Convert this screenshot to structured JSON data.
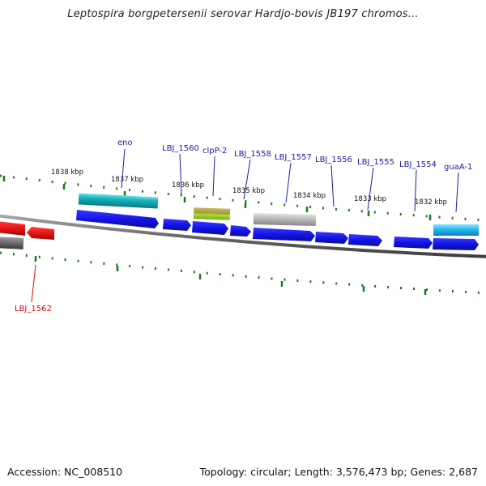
{
  "title": "Leptospira borgpetersenii serovar Hardjo-bovis JB197 chromos...",
  "footer": {
    "accession": "Accession: NC_008510",
    "summary": "Topology: circular; Length: 3,576,473 bp; Genes: 2,687"
  },
  "scale_labels": [
    "1838 kbp",
    "1837 kbp",
    "1836 kbp",
    "1835 kbp",
    "1834 kbp",
    "1833 kbp",
    "1832 kbp"
  ],
  "gene_labels": [
    {
      "text": "eno",
      "color": "#1a1aa8"
    },
    {
      "text": "LBJ_1560",
      "color": "#1a1aa8"
    },
    {
      "text": "clpP-2",
      "color": "#1a1aa8"
    },
    {
      "text": "LBJ_1558",
      "color": "#1a1aa8"
    },
    {
      "text": "LBJ_1557",
      "color": "#1a1aa8"
    },
    {
      "text": "LBJ_1556",
      "color": "#1a1aa8"
    },
    {
      "text": "LBJ_1555",
      "color": "#1a1aa8"
    },
    {
      "text": "LBJ_1554",
      "color": "#1a1aa8"
    },
    {
      "text": "guaA-1",
      "color": "#1a1aa8"
    },
    {
      "text": "LBJ_1562",
      "color": "#d01010"
    }
  ],
  "colors": {
    "forward_gene": "#1010e0",
    "reverse_gene": "#e01010",
    "backbone": "#707070",
    "tick": "#1a7a1a",
    "eno_cog": "#1ab8c0",
    "clpP_cog_top": "#b0a040",
    "clpP_cog_bottom": "#9ad020",
    "grey_cog": "#b0b0b0",
    "guaA_cog": "#20b8f0"
  }
}
